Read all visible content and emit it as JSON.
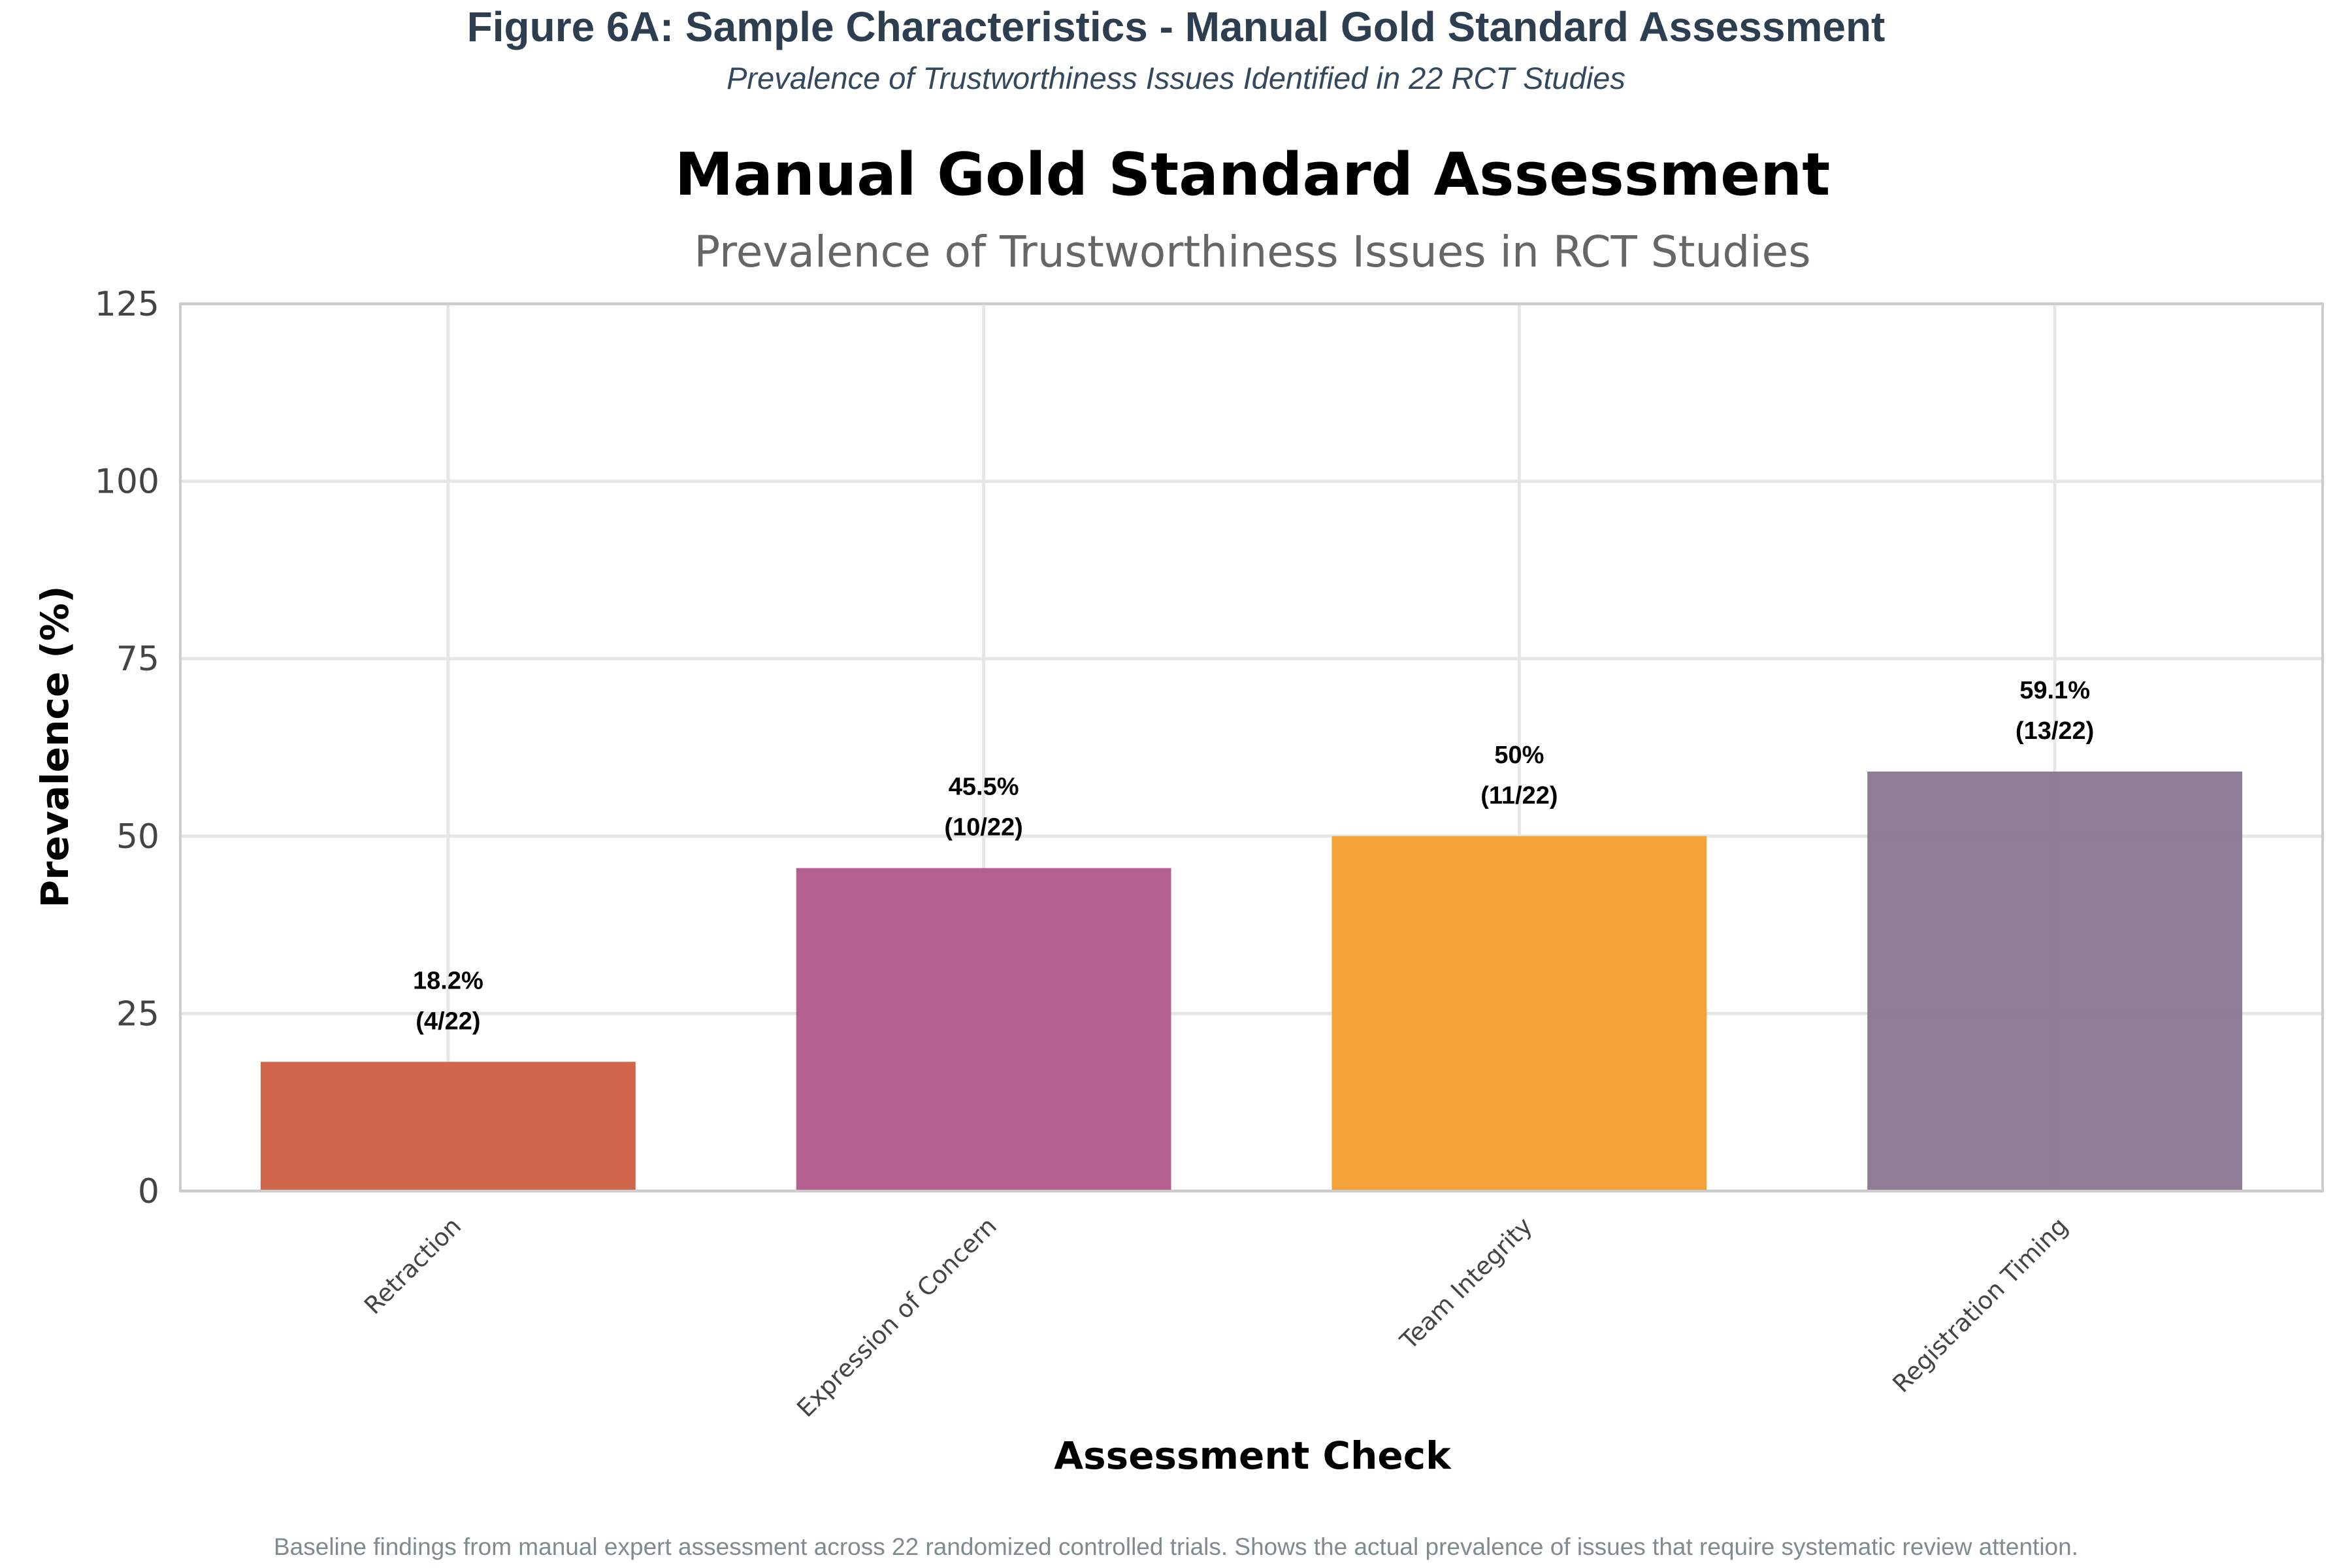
{
  "figure": {
    "title": "Figure 6A: Sample Characteristics - Manual Gold Standard Assessment",
    "subtitle": "Prevalence of Trustworthiness Issues Identified in 22 RCT Studies",
    "caption": "Baseline findings from manual expert assessment across 22 randomized controlled trials. Shows the actual prevalence of issues that require systematic review attention."
  },
  "chart_data": {
    "type": "bar",
    "title": "Manual Gold Standard Assessment",
    "subtitle": "Prevalence of Trustworthiness Issues in RCT Studies",
    "xlabel": "Assessment Check",
    "ylabel": "Prevalence (%)",
    "ylim": [
      0,
      125
    ],
    "yticks": [
      0,
      25,
      50,
      75,
      100,
      125
    ],
    "grid": true,
    "categories": [
      "Retraction",
      "Expression of Concern",
      "Team Integrity",
      "Registration Timing"
    ],
    "values": [
      18.2,
      45.5,
      50,
      59.1
    ],
    "labels": [
      "18.2%",
      "45.5%",
      "50%",
      "59.1%"
    ],
    "counts": [
      "(4/22)",
      "(10/22)",
      "(11/22)",
      "(13/22)"
    ],
    "colors": [
      "#cf5a3e",
      "#ae5586",
      "#f39c2a",
      "#85738c"
    ]
  }
}
